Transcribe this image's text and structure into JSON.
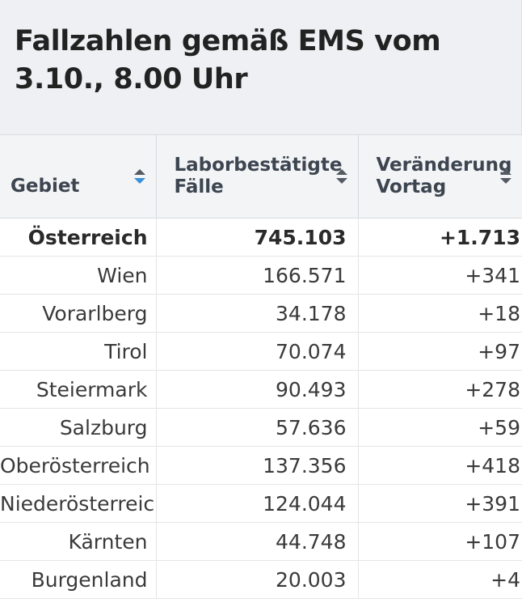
{
  "header": {
    "title": "Fallzahlen gemäß EMS vom 3.10., 8.00 Uhr"
  },
  "table": {
    "columns": [
      {
        "label": "Gebiet",
        "sort_icon": "sort-active-icon"
      },
      {
        "label": "Laborbestätigte Fälle",
        "sort_icon": "sort-icon"
      },
      {
        "label": "Veränderung Vortag",
        "sort_icon": "sort-icon"
      }
    ],
    "rows": [
      {
        "gebiet": "Österreich",
        "faelle": "745.103",
        "veraenderung": "+1.713",
        "bold": true
      },
      {
        "gebiet": "Wien",
        "faelle": "166.571",
        "veraenderung": "+341"
      },
      {
        "gebiet": "Vorarlberg",
        "faelle": "34.178",
        "veraenderung": "+18"
      },
      {
        "gebiet": "Tirol",
        "faelle": "70.074",
        "veraenderung": "+97"
      },
      {
        "gebiet": "Steiermark",
        "faelle": "90.493",
        "veraenderung": "+278"
      },
      {
        "gebiet": "Salzburg",
        "faelle": "57.636",
        "veraenderung": "+59"
      },
      {
        "gebiet": "Oberösterreich",
        "faelle": "137.356",
        "veraenderung": "+418"
      },
      {
        "gebiet": "Niederösterreich",
        "faelle": "124.044",
        "veraenderung": "+391"
      },
      {
        "gebiet": "Kärnten",
        "faelle": "44.748",
        "veraenderung": "+107"
      },
      {
        "gebiet": "Burgenland",
        "faelle": "20.003",
        "veraenderung": "+4"
      }
    ]
  },
  "colors": {
    "sort_active": "#3a8fd9",
    "sort_inactive": "#555b63",
    "header_bg": "#eef0f3",
    "table_header_bg": "#f3f4f6"
  }
}
